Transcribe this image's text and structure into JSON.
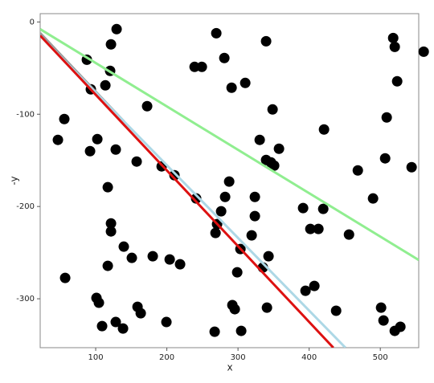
{
  "chart_data": {
    "type": "scatter",
    "xlabel": "x",
    "ylabel": "-y",
    "color": "#000000",
    "x": [
      129.4,
      269.5,
      121.5,
      339.5,
      87.6,
      120.3,
      239,
      249.2,
      280.8,
      310.2,
      291,
      93.2,
      113.6,
      172.3,
      55.9,
      46.9,
      92.1,
      102.3,
      128.2,
      348.6,
      420.9,
      330.5,
      357.6,
      339.5,
      346.3,
      350.8,
      157.6,
      192.7,
      210.7,
      287.6,
      281.9,
      323.7,
      241.2,
      117,
      468.4,
      489.8,
      506.8,
      518.1,
      520.3,
      561,
      523.7,
      509,
      544,
      391.5,
      419.8,
      401.7,
      413,
      456,
      323.7,
      276.3,
      270.6,
      121.5,
      121.5,
      268.4,
      319.2,
      139.5,
      117,
      180.2,
      150.8,
      204,
      218.6,
      303.4,
      342.9,
      335,
      298.9,
      57.1,
      101.1,
      104.5,
      158.8,
      163.3,
      128.2,
      199.4,
      292.1,
      295.5,
      340.7,
      407.3,
      394.9,
      109,
      138.4,
      267.2,
      304.5,
      437.9,
      501.1,
      504.5,
      520.3,
      528.2
    ],
    "values": [
      -7.8,
      -12.2,
      -24.3,
      -20.9,
      -40.9,
      -53,
      -48.7,
      -48.7,
      -39.1,
      -66.1,
      -71.3,
      -73,
      -68.7,
      -91.3,
      -105.2,
      -127.8,
      -140,
      -127,
      -138.3,
      -94.8,
      -116.5,
      -127.8,
      -137.4,
      -149.6,
      -152.2,
      -155.7,
      -151.3,
      -156.5,
      -166.1,
      -173,
      -189.6,
      -189.6,
      -191.3,
      -179.1,
      -160.9,
      -191.3,
      -147.8,
      -17.4,
      -27,
      -32.2,
      -64.3,
      -103.5,
      -157.4,
      -201.7,
      -202.6,
      -224.3,
      -224.3,
      -230.4,
      -210.4,
      -205.2,
      -219.1,
      -218.3,
      -227,
      -228.7,
      -231.3,
      -243.5,
      -264.3,
      -253.9,
      -255.7,
      -257.4,
      -262.6,
      -246.1,
      -253.9,
      -266.1,
      -271.3,
      -277.4,
      -299.1,
      -304.3,
      -308.7,
      -315.7,
      -325.2,
      -325.2,
      -306.9,
      -311.3,
      -309.6,
      -286.1,
      -291.3,
      -329.6,
      -332.2,
      -335.7,
      -334.8,
      -313,
      -309.6,
      -323.5,
      -334.8,
      -330.4
    ],
    "lines": [
      {
        "color": "#9a9a9a",
        "x": [
          22,
          140
        ],
        "values": [
          -12,
          -108
        ]
      },
      {
        "color": "#add8e6",
        "x": [
          22,
          451
        ],
        "values": [
          -15,
          -353
        ]
      },
      {
        "color": "#dd1111",
        "x": [
          22,
          434
        ],
        "values": [
          -14.8,
          -353
        ]
      },
      {
        "color": "#90ee90",
        "x": [
          22,
          554
        ],
        "values": [
          -7.8,
          -258
        ]
      }
    ],
    "xlim": [
      22,
      554
    ],
    "ylim": [
      -353,
      9
    ],
    "xticks": [
      100,
      200,
      300,
      400,
      500
    ],
    "yticks": [
      0,
      -100,
      -200,
      -300
    ]
  }
}
